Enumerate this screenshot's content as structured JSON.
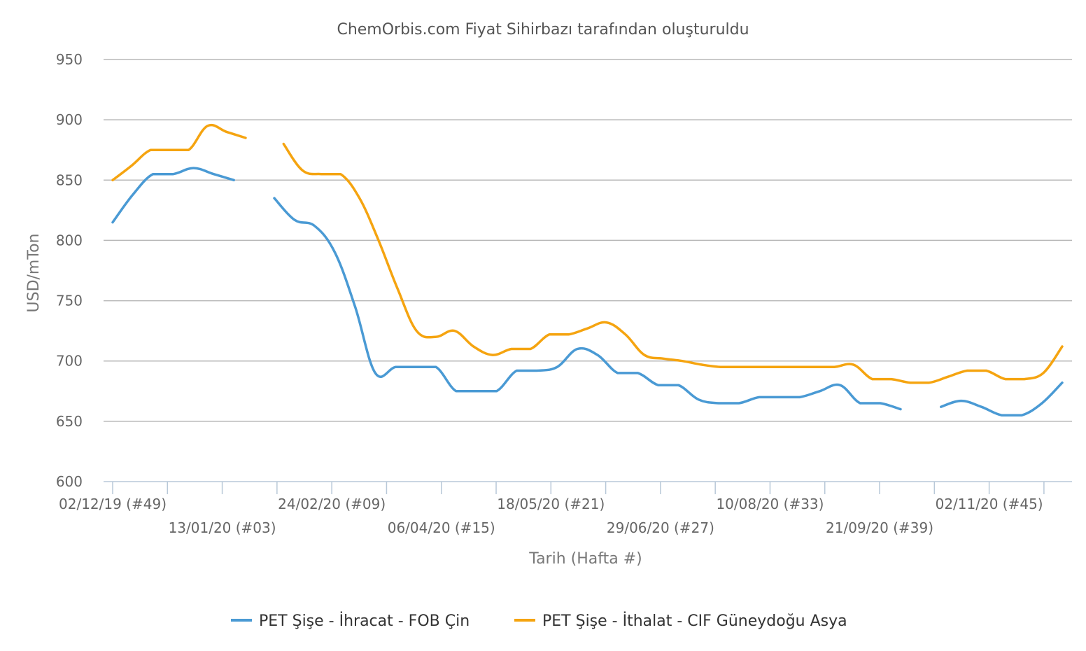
{
  "chart_data": {
    "type": "line",
    "title": "ChemOrbis.com Fiyat Sihirbazı tarafından oluşturuldu",
    "xlabel": "Tarih (Hafta #)",
    "ylabel": "USD/mTon",
    "ylim": [
      600,
      950
    ],
    "yticks": [
      "950",
      "900",
      "850",
      "800",
      "750",
      "700",
      "650",
      "600"
    ],
    "ytick_values": [
      950,
      900,
      850,
      800,
      750,
      700,
      650,
      600
    ],
    "week_count": 53,
    "xticks": [
      {
        "week": 0,
        "label": "02/12/19 (#49)",
        "row": 1
      },
      {
        "week": 6,
        "label": "13/01/20 (#03)",
        "row": 2
      },
      {
        "week": 12,
        "label": "24/02/20 (#09)",
        "row": 1
      },
      {
        "week": 18,
        "label": "06/04/20 (#15)",
        "row": 2
      },
      {
        "week": 24,
        "label": "18/05/20 (#21)",
        "row": 1
      },
      {
        "week": 30,
        "label": "29/06/20 (#27)",
        "row": 2
      },
      {
        "week": 36,
        "label": "10/08/20 (#33)",
        "row": 1
      },
      {
        "week": 42,
        "label": "21/09/20 (#39)",
        "row": 2
      },
      {
        "week": 48,
        "label": "02/11/20 (#45)",
        "row": 1
      }
    ],
    "legend_position": "bottom",
    "grid": true,
    "series": [
      {
        "name": "PET Şişe - İhracat - FOB Çin",
        "color": "#4a9ad4",
        "values": [
          815,
          838,
          855,
          855,
          860,
          855,
          850,
          null,
          835,
          817,
          812,
          790,
          745,
          690,
          695,
          695,
          695,
          675,
          675,
          675,
          692,
          692,
          695,
          710,
          705,
          690,
          690,
          680,
          680,
          668,
          665,
          665,
          670,
          670,
          670,
          675,
          680,
          665,
          665,
          660,
          null,
          662,
          667,
          662,
          655,
          655,
          665,
          682
        ]
      },
      {
        "name": "PET Şişe - İthalat - CIF Güneydoğu Asya",
        "color": "#f5a410",
        "values": [
          850,
          862,
          875,
          875,
          875,
          895,
          890,
          885,
          null,
          880,
          858,
          855,
          855,
          835,
          800,
          760,
          725,
          720,
          725,
          712,
          705,
          710,
          710,
          722,
          722,
          727,
          732,
          722,
          705,
          702,
          700,
          697,
          695,
          695,
          695,
          695,
          695,
          695,
          695,
          697,
          685,
          685,
          682,
          682,
          687,
          692,
          692,
          685,
          685,
          690,
          712
        ]
      }
    ]
  }
}
